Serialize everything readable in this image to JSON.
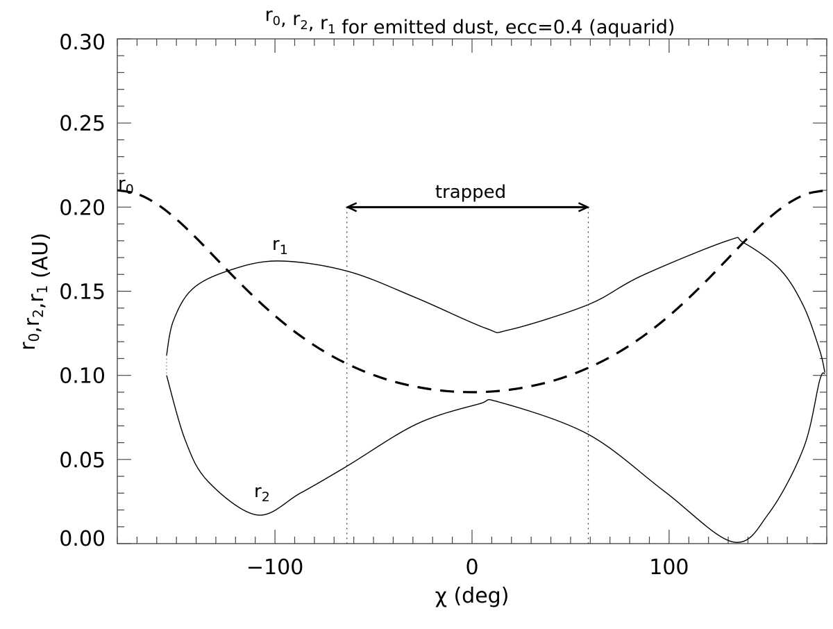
{
  "chart_data": {
    "type": "line",
    "title": {
      "parts": [
        [
          "r",
          "0"
        ],
        [
          ", r",
          "2"
        ],
        [
          ", r",
          "1"
        ],
        [
          " for emitted dust, ecc=0.4 (aquarid)",
          ""
        ]
      ]
    },
    "xlabel": "χ (deg)",
    "ylabel": {
      "parts": [
        [
          "r",
          "0"
        ],
        [
          ",r",
          "2"
        ],
        [
          ",r",
          "1"
        ],
        [
          " (AU)",
          ""
        ]
      ]
    },
    "xlim": [
      -180,
      180
    ],
    "ylim": [
      0.0,
      0.3
    ],
    "x_ticks": [
      -100,
      0,
      100
    ],
    "x_tick_labels": [
      "−100",
      "0",
      "100"
    ],
    "y_ticks": [
      0.0,
      0.05,
      0.1,
      0.15,
      0.2,
      0.25,
      0.3
    ],
    "y_tick_labels": [
      "0.00",
      "0.05",
      "0.10",
      "0.15",
      "0.20",
      "0.25",
      "0.30"
    ],
    "grid": false,
    "series": [
      {
        "name": "r0",
        "style": "dashed",
        "x": [
          -180,
          -170,
          -160,
          -150,
          -140,
          -130,
          -120,
          -110,
          -100,
          -90,
          -80,
          -70,
          -60,
          -50,
          -40,
          -30,
          -20,
          -10,
          0,
          10,
          20,
          30,
          40,
          50,
          60,
          70,
          80,
          90,
          100,
          110,
          120,
          130,
          140,
          150,
          160,
          170,
          180
        ],
        "y": [
          0.21,
          0.2079,
          0.2019,
          0.1928,
          0.1817,
          0.1696,
          0.1575,
          0.146,
          0.1354,
          0.126,
          0.1178,
          0.1108,
          0.105,
          0.1002,
          0.0964,
          0.0936,
          0.0916,
          0.0904,
          0.09,
          0.0904,
          0.0916,
          0.0936,
          0.0964,
          0.1002,
          0.105,
          0.1108,
          0.1178,
          0.126,
          0.1354,
          0.146,
          0.1575,
          0.1696,
          0.1817,
          0.1928,
          0.2019,
          0.2079,
          0.21
        ]
      },
      {
        "name": "r1",
        "style": "solid",
        "x": [
          -155,
          -151.7,
          -142.2,
          -124.2,
          -98.8,
          -63.5,
          -28.2,
          7,
          18.7,
          58.9,
          85.7,
          129.5,
          137.6,
          156.3,
          168.3,
          176.4,
          179
        ],
        "y": [
          0.112,
          0.132,
          0.151,
          0.162,
          0.168,
          0.162,
          0.146,
          0.128,
          0.127,
          0.142,
          0.159,
          0.18,
          0.179,
          0.163,
          0.141,
          0.115,
          0.102
        ]
      },
      {
        "name": "r2",
        "style": "solid",
        "x": [
          -155,
          -145.7,
          -134,
          -109,
          -87.1,
          -63.5,
          -28.2,
          3.5,
          14.1,
          58.9,
          97.7,
          132.3,
          150.6,
          168.3,
          176.4,
          179
        ],
        "y": [
          0.1,
          0.062,
          0.037,
          0.017,
          0.03,
          0.046,
          0.071,
          0.083,
          0.084,
          0.065,
          0.031,
          0.001,
          0.018,
          0.057,
          0.097,
          0.101
        ]
      }
    ],
    "annotations": {
      "trapped_label": "trapped",
      "trapped_range": [
        -63.5,
        59
      ],
      "trapped_level": 0.2,
      "curve_labels": [
        [
          "r",
          "0"
        ],
        [
          "r",
          "1"
        ],
        [
          "r",
          "2"
        ]
      ]
    }
  }
}
